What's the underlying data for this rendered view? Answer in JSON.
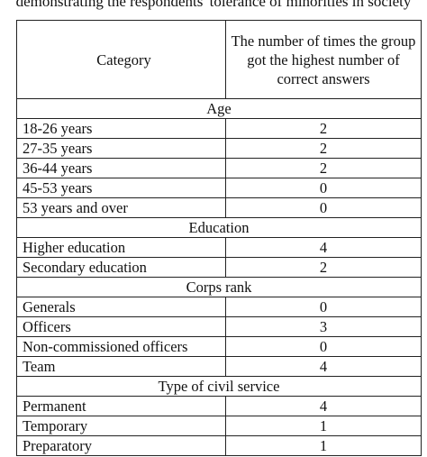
{
  "caption": "demonstrating the respondents' tolerance of minorities in society",
  "table": {
    "headers": {
      "category": "Category",
      "count": "The number of times the group got the highest number of correct answers"
    },
    "sections": [
      {
        "title": "Age",
        "rows": [
          {
            "label": "18-26 years",
            "value": "2"
          },
          {
            "label": "27-35 years",
            "value": "2"
          },
          {
            "label": "36-44 years",
            "value": "2"
          },
          {
            "label": "45-53 years",
            "value": "0"
          },
          {
            "label": "53 years and over",
            "value": "0"
          }
        ]
      },
      {
        "title": "Education",
        "rows": [
          {
            "label": "Higher education",
            "value": "4"
          },
          {
            "label": "Secondary education",
            "value": "2"
          }
        ]
      },
      {
        "title": "Corps rank",
        "rows": [
          {
            "label": "Generals",
            "value": "0"
          },
          {
            "label": "Officers",
            "value": "3"
          },
          {
            "label": "Non-commissioned officers",
            "value": "0"
          },
          {
            "label": "Team",
            "value": "4"
          }
        ]
      },
      {
        "title": "Type of civil service",
        "rows": [
          {
            "label": "Permanent",
            "value": "4"
          },
          {
            "label": "Temporary",
            "value": "1"
          },
          {
            "label": "Preparatory",
            "value": "1"
          }
        ]
      }
    ]
  }
}
